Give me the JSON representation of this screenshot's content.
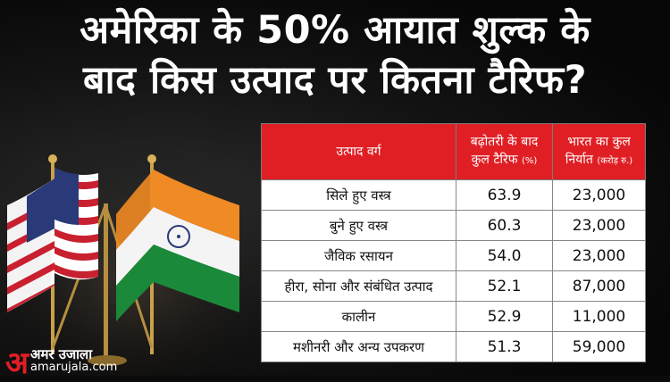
{
  "headline": {
    "line1": "अमेरिका के 50% आयात शुल्क के",
    "line2": "बाद किस उत्पाद पर कितना टैरिफ?"
  },
  "table": {
    "headers": {
      "category": "उत्पाद वर्ग",
      "tariff_line1": "बढ़ोतरी के बाद",
      "tariff_line2": "कुल टैरिफ",
      "tariff_unit": "(%)",
      "export_line1": "भारत का कुल",
      "export_line2": "निर्यात",
      "export_unit": "(करोड़ रु.)"
    },
    "rows": [
      {
        "category": "सिले हुए वस्त्र",
        "tariff": "63.9",
        "export": "23,000"
      },
      {
        "category": "बुने हुए वस्त्र",
        "tariff": "60.3",
        "export": "23,000"
      },
      {
        "category": "जैविक रसायन",
        "tariff": "54.0",
        "export": "23,000"
      },
      {
        "category": "हीरा, सोना और संबंधित उत्पाद",
        "tariff": "52.1",
        "export": "87,000"
      },
      {
        "category": "कालीन",
        "tariff": "52.9",
        "export": "11,000"
      },
      {
        "category": "मशीनरी और अन्य उपकरण",
        "tariff": "51.3",
        "export": "59,000"
      }
    ]
  },
  "logo": {
    "mark": "अ",
    "name": "अमर उजाला",
    "url": "amarujala.com"
  },
  "colors": {
    "header_red": "#e01f25",
    "saffron": "#f08a24",
    "india_green": "#1a8a3a",
    "usa_red": "#c8202f",
    "usa_blue": "#2a3a78"
  }
}
